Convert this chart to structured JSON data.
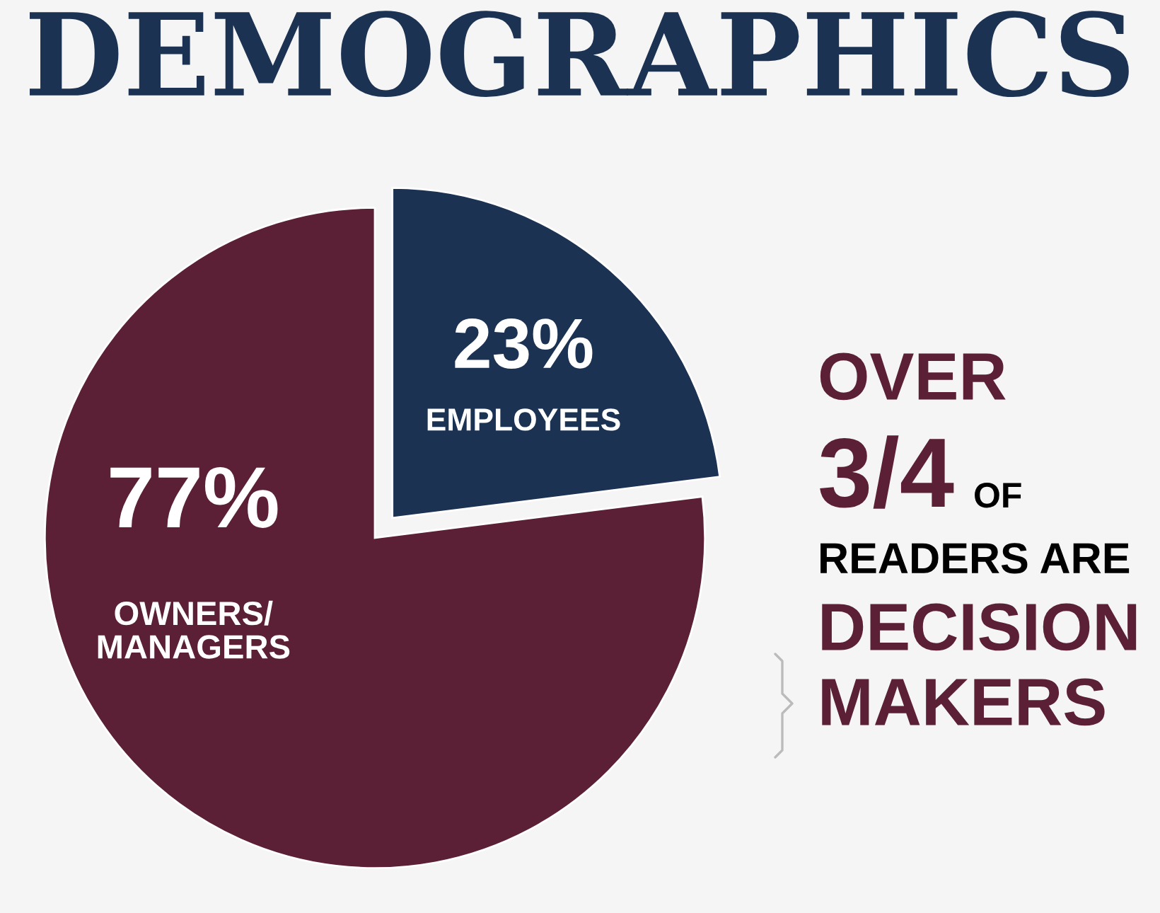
{
  "chart_data": {
    "type": "pie",
    "title": "DEMOGRAPHICS",
    "categories": [
      "EMPLOYEES",
      "OWNERS/\nMANAGERS"
    ],
    "values": [
      23,
      77
    ],
    "value_labels": [
      "23%",
      "77%"
    ],
    "colors": [
      "#1c3252",
      "#5b2035"
    ],
    "annotations": [
      "OVER",
      "3/4",
      "OF",
      "READERS ARE",
      "DECISION",
      "MAKERS"
    ]
  }
}
